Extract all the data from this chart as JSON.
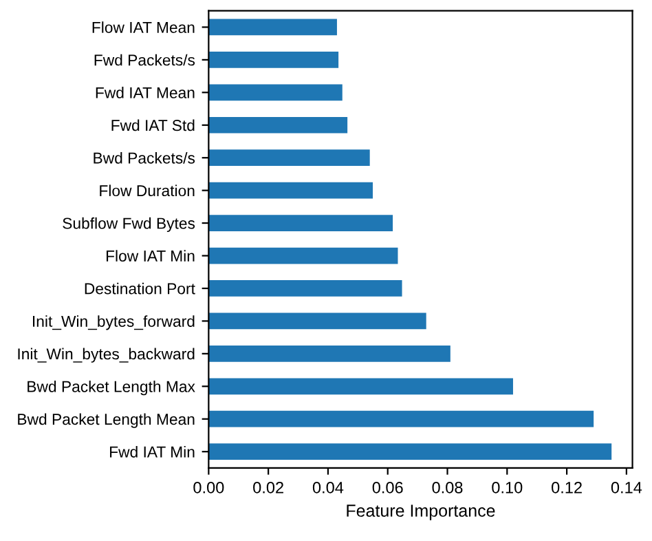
{
  "chart_data": {
    "type": "bar",
    "orientation": "horizontal",
    "xlabel": "Feature Importance",
    "categories": [
      "Flow IAT Mean",
      "Fwd Packets/s",
      "Fwd IAT Mean",
      "Fwd IAT Std",
      "Bwd Packets/s",
      "Flow Duration",
      "Subflow Fwd Bytes",
      "Flow IAT Min",
      "Destination Port",
      "Init_Win_bytes_forward",
      "Init_Win_bytes_backward",
      "Bwd Packet Length Max",
      "Bwd Packet Length Mean",
      "Fwd IAT Min"
    ],
    "values": [
      0.043,
      0.0435,
      0.0448,
      0.0465,
      0.054,
      0.055,
      0.0617,
      0.0634,
      0.0648,
      0.0729,
      0.081,
      0.102,
      0.129,
      0.135
    ],
    "color": "#1f77b4",
    "xlim": [
      0,
      0.142
    ],
    "xticks": [
      {
        "value": 0,
        "label": "0.00"
      },
      {
        "value": 0.02,
        "label": "0.02"
      },
      {
        "value": 0.04,
        "label": "0.04"
      },
      {
        "value": 0.06,
        "label": "0.06"
      },
      {
        "value": 0.08,
        "label": "0.08"
      },
      {
        "value": 0.1,
        "label": "0.10"
      },
      {
        "value": 0.12,
        "label": "0.12"
      },
      {
        "value": 0.14,
        "label": "0.14"
      }
    ],
    "grid": false,
    "legend": false
  }
}
